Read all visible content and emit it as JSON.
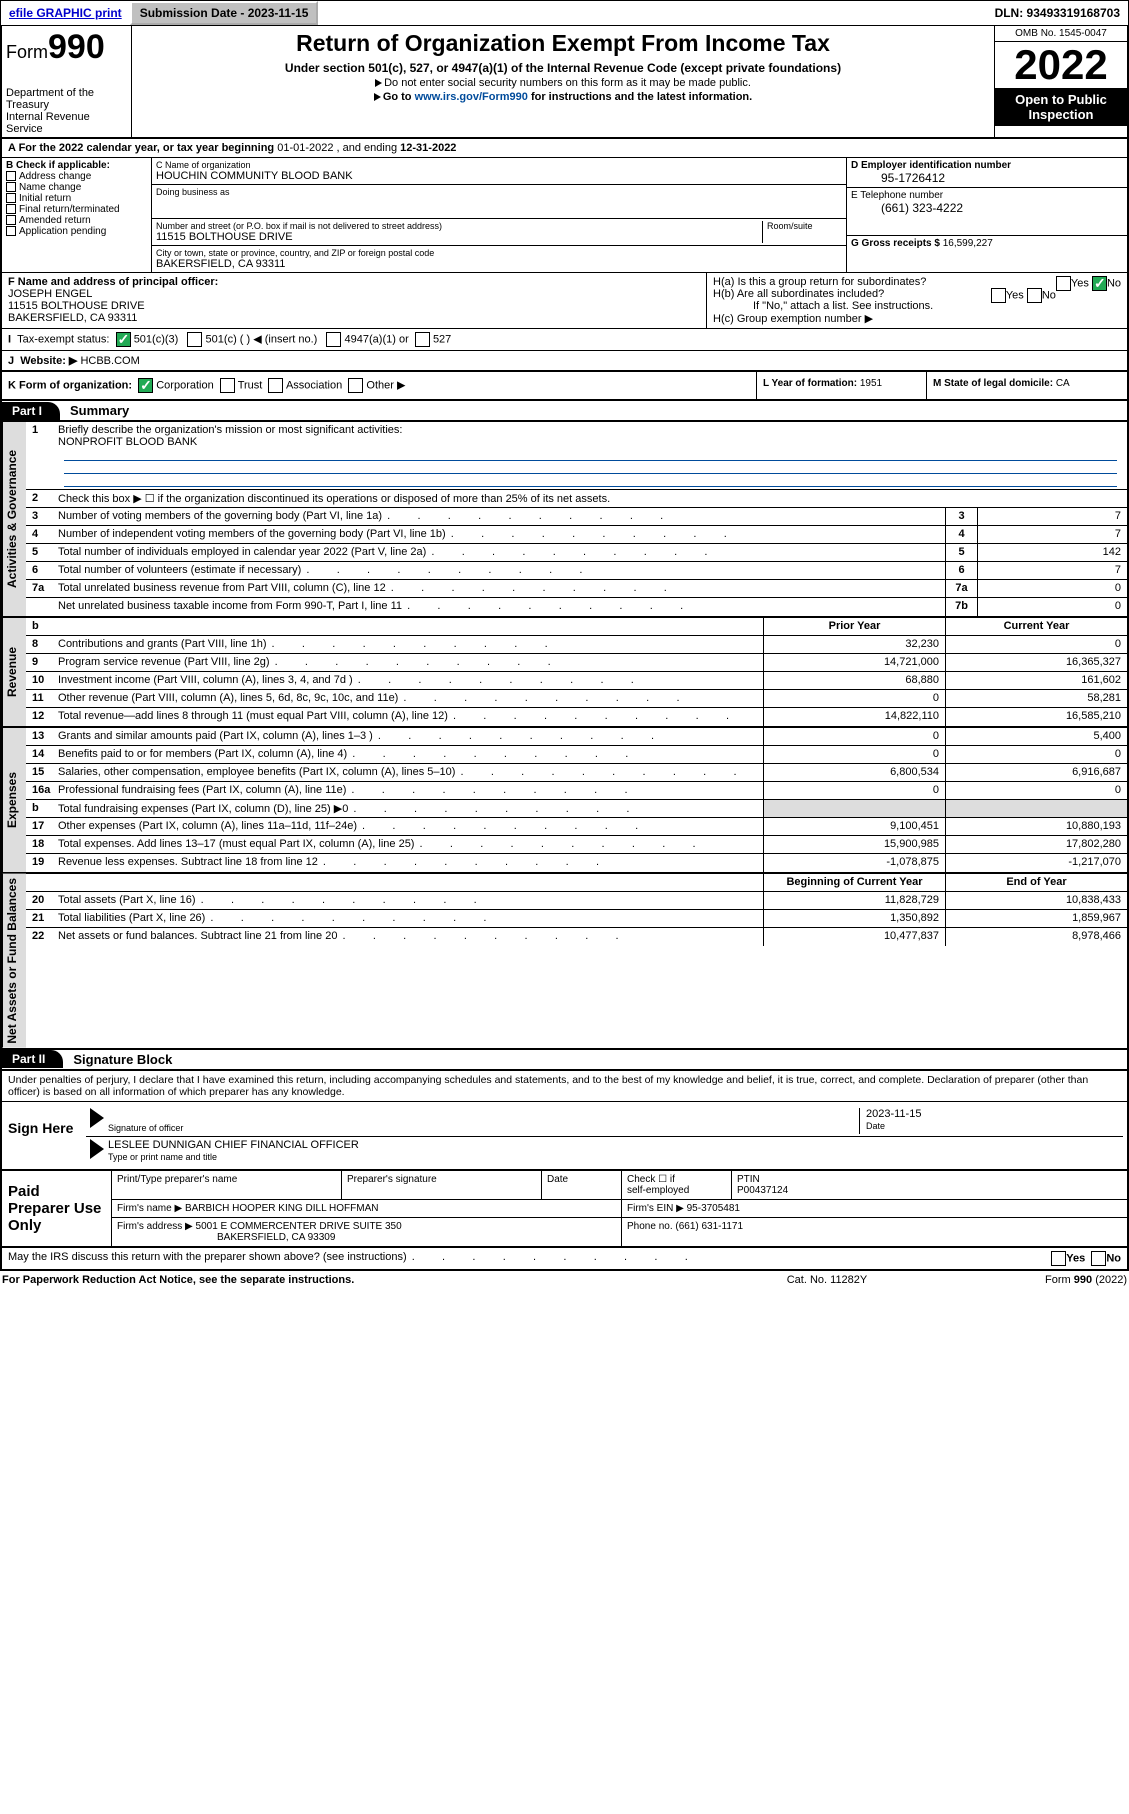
{
  "topbar": {
    "efile": "efile GRAPHIC print",
    "submission_label": "Submission Date - 2023-11-15",
    "dln": "DLN: 93493319168703"
  },
  "header": {
    "form_prefix": "Form",
    "form_number": "990",
    "title": "Return of Organization Exempt From Income Tax",
    "sub1": "Under section 501(c), 527, or 4947(a)(1) of the Internal Revenue Code (except private foundations)",
    "sub2": "Do not enter social security numbers on this form as it may be made public.",
    "sub3_pre": "Go to ",
    "sub3_link": "www.irs.gov/Form990",
    "sub3_post": " for instructions and the latest information.",
    "dept": "Department of the Treasury\nInternal Revenue Service",
    "omb": "OMB No. 1545-0047",
    "year": "2022",
    "open": "Open to Public Inspection"
  },
  "period": {
    "label_a": "A For the 2022 calendar year, or tax year beginning ",
    "begin": "01-01-2022",
    "mid": " , and ending ",
    "end": "12-31-2022"
  },
  "colB": {
    "label": "B Check if applicable:",
    "items": [
      "Address change",
      "Name change",
      "Initial return",
      "Final return/terminated",
      "Amended return",
      "Application pending"
    ]
  },
  "colC": {
    "name_label": "C Name of organization",
    "name": "HOUCHIN COMMUNITY BLOOD BANK",
    "dba_label": "Doing business as",
    "dba": "",
    "street_label": "Number and street (or P.O. box if mail is not delivered to street address)",
    "room_label": "Room/suite",
    "street": "11515 BOLTHOUSE DRIVE",
    "city_label": "City or town, state or province, country, and ZIP or foreign postal code",
    "city": "BAKERSFIELD, CA  93311"
  },
  "colDE": {
    "d_label": "D Employer identification number",
    "ein": "95-1726412",
    "e_label": "E Telephone number",
    "phone": "(661) 323-4222",
    "g_label": "G Gross receipts $ ",
    "gross": "16,599,227"
  },
  "rowFH": {
    "f_label": "F Name and address of principal officer:",
    "f_name": "JOSEPH ENGEL",
    "f_addr1": "11515 BOLTHOUSE DRIVE",
    "f_addr2": "BAKERSFIELD, CA  93311",
    "ha": "H(a)  Is this a group return for subordinates?",
    "hb": "H(b)  Are all subordinates included?",
    "hb_note": "If \"No,\" attach a list. See instructions.",
    "hc": "H(c)  Group exemption number ▶",
    "yes": "Yes",
    "no": "No"
  },
  "rowI": {
    "label": "Tax-exempt status:",
    "opt1": "501(c)(3)",
    "opt2": "501(c) (  ) ◀ (insert no.)",
    "opt3": "4947(a)(1) or",
    "opt4": "527"
  },
  "rowJ": {
    "label": "Website: ▶",
    "val": "HCBB.COM"
  },
  "rowK": {
    "label": "K Form of organization:",
    "opts": [
      "Corporation",
      "Trust",
      "Association",
      "Other ▶"
    ],
    "l_label": "L Year of formation: ",
    "l_val": "1951",
    "m_label": "M State of legal domicile: ",
    "m_val": "CA"
  },
  "part1": {
    "hdr": "Part I",
    "title": "Summary",
    "l1": "Briefly describe the organization's mission or most significant activities:",
    "l1_val": "NONPROFIT BLOOD BANK",
    "l2": "Check this box ▶ ☐  if the organization discontinued its operations or disposed of more than 25% of its net assets.",
    "rows_onecol": [
      {
        "n": "3",
        "t": "Number of voting members of the governing body (Part VI, line 1a)",
        "box": "3",
        "v": "7"
      },
      {
        "n": "4",
        "t": "Number of independent voting members of the governing body (Part VI, line 1b)",
        "box": "4",
        "v": "7"
      },
      {
        "n": "5",
        "t": "Total number of individuals employed in calendar year 2022 (Part V, line 2a)",
        "box": "5",
        "v": "142"
      },
      {
        "n": "6",
        "t": "Total number of volunteers (estimate if necessary)",
        "box": "6",
        "v": "7"
      },
      {
        "n": "7a",
        "t": "Total unrelated business revenue from Part VIII, column (C), line 12",
        "box": "7a",
        "v": "0"
      },
      {
        "n": "",
        "t": "Net unrelated business taxable income from Form 990-T, Part I, line 11",
        "box": "7b",
        "v": "0"
      }
    ],
    "hdr_prior": "Prior Year",
    "hdr_curr": "Current Year",
    "revenue": [
      {
        "n": "8",
        "t": "Contributions and grants (Part VIII, line 1h)",
        "p": "32,230",
        "c": "0"
      },
      {
        "n": "9",
        "t": "Program service revenue (Part VIII, line 2g)",
        "p": "14,721,000",
        "c": "16,365,327"
      },
      {
        "n": "10",
        "t": "Investment income (Part VIII, column (A), lines 3, 4, and 7d )",
        "p": "68,880",
        "c": "161,602"
      },
      {
        "n": "11",
        "t": "Other revenue (Part VIII, column (A), lines 5, 6d, 8c, 9c, 10c, and 11e)",
        "p": "0",
        "c": "58,281"
      },
      {
        "n": "12",
        "t": "Total revenue—add lines 8 through 11 (must equal Part VIII, column (A), line 12)",
        "p": "14,822,110",
        "c": "16,585,210"
      }
    ],
    "expenses": [
      {
        "n": "13",
        "t": "Grants and similar amounts paid (Part IX, column (A), lines 1–3 )",
        "p": "0",
        "c": "5,400"
      },
      {
        "n": "14",
        "t": "Benefits paid to or for members (Part IX, column (A), line 4)",
        "p": "0",
        "c": "0"
      },
      {
        "n": "15",
        "t": "Salaries, other compensation, employee benefits (Part IX, column (A), lines 5–10)",
        "p": "6,800,534",
        "c": "6,916,687"
      },
      {
        "n": "16a",
        "t": "Professional fundraising fees (Part IX, column (A), line 11e)",
        "p": "0",
        "c": "0"
      },
      {
        "n": "b",
        "t": "Total fundraising expenses (Part IX, column (D), line 25) ▶0",
        "p": "",
        "c": "",
        "grey": true
      },
      {
        "n": "17",
        "t": "Other expenses (Part IX, column (A), lines 11a–11d, 11f–24e)",
        "p": "9,100,451",
        "c": "10,880,193"
      },
      {
        "n": "18",
        "t": "Total expenses. Add lines 13–17 (must equal Part IX, column (A), line 25)",
        "p": "15,900,985",
        "c": "17,802,280"
      },
      {
        "n": "19",
        "t": "Revenue less expenses. Subtract line 18 from line 12",
        "p": "-1,078,875",
        "c": "-1,217,070"
      }
    ],
    "hdr_beg": "Beginning of Current Year",
    "hdr_end": "End of Year",
    "netassets": [
      {
        "n": "20",
        "t": "Total assets (Part X, line 16)",
        "p": "11,828,729",
        "c": "10,838,433"
      },
      {
        "n": "21",
        "t": "Total liabilities (Part X, line 26)",
        "p": "1,350,892",
        "c": "1,859,967"
      },
      {
        "n": "22",
        "t": "Net assets or fund balances. Subtract line 21 from line 20",
        "p": "10,477,837",
        "c": "8,978,466"
      }
    ],
    "side_gov": "Activities & Governance",
    "side_rev": "Revenue",
    "side_exp": "Expenses",
    "side_net": "Net Assets or Fund Balances"
  },
  "part2": {
    "hdr": "Part II",
    "title": "Signature Block",
    "intro": "Under penalties of perjury, I declare that I have examined this return, including accompanying schedules and statements, and to the best of my knowledge and belief, it is true, correct, and complete. Declaration of preparer (other than officer) is based on all information of which preparer has any knowledge.",
    "sign_here": "Sign Here",
    "sig_label": "Signature of officer",
    "date_label": "Date",
    "date_val": "2023-11-15",
    "name_val": "LESLEE DUNNIGAN CHIEF FINANCIAL OFFICER",
    "name_label": "Type or print name and title"
  },
  "paid": {
    "title": "Paid Preparer Use Only",
    "h1": "Print/Type preparer's name",
    "h2": "Preparer's signature",
    "h3": "Date",
    "h4a": "Check ☐ if",
    "h4b": "self-employed",
    "h5": "PTIN",
    "ptin": "P00437124",
    "firm_name_l": "Firm's name    ▶",
    "firm_name": "BARBICH HOOPER KING DILL HOFFMAN",
    "firm_ein_l": "Firm's EIN ▶ ",
    "firm_ein": "95-3705481",
    "firm_addr_l": "Firm's address ▶",
    "firm_addr1": "5001 E COMMERCENTER DRIVE SUITE 350",
    "firm_addr2": "BAKERSFIELD, CA  93309",
    "phone_l": "Phone no. ",
    "phone": "(661) 631-1171"
  },
  "discuss": {
    "q": "May the IRS discuss this return with the preparer shown above? (see instructions)",
    "yes": "Yes",
    "no": "No"
  },
  "foot": {
    "a": "For Paperwork Reduction Act Notice, see the separate instructions.",
    "b": "Cat. No. 11282Y",
    "c": "Form 990 (2022)"
  }
}
